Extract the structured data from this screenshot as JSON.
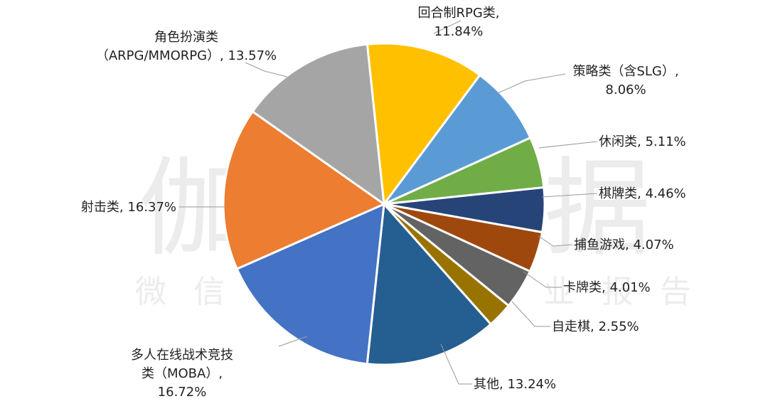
{
  "watermark": {
    "main": "伽马数据",
    "sub": "微信号：游戏产业报告"
  },
  "chart_data": {
    "type": "pie",
    "title": "",
    "start_angle_deg": -6,
    "direction": "clockwise",
    "slices": [
      {
        "name": "回合制RPG类",
        "value": 11.84,
        "color": "#FFC000",
        "label_lines": [
          "回合制RPG类,",
          "11.84%"
        ],
        "label_align": "middle"
      },
      {
        "name": "策略类（含SLG）",
        "value": 8.06,
        "color": "#5B9BD5",
        "label_lines": [
          "策略类（含SLG）,",
          "8.06%"
        ],
        "label_align": "middle"
      },
      {
        "name": "休闲类",
        "value": 5.11,
        "color": "#70AD47",
        "label_lines": [
          "休闲类, 5.11%"
        ],
        "label_align": "start"
      },
      {
        "name": "棋牌类",
        "value": 4.46,
        "color": "#264478",
        "label_lines": [
          "棋牌类, 4.46%"
        ],
        "label_align": "start"
      },
      {
        "name": "捕鱼游戏",
        "value": 4.07,
        "color": "#9E480E",
        "label_lines": [
          "捕鱼游戏, 4.07%"
        ],
        "label_align": "start"
      },
      {
        "name": "卡牌类",
        "value": 4.01,
        "color": "#636363",
        "label_lines": [
          "卡牌类, 4.01%"
        ],
        "label_align": "start"
      },
      {
        "name": "自走棋",
        "value": 2.55,
        "color": "#997300",
        "label_lines": [
          "自走棋, 2.55%"
        ],
        "label_align": "start"
      },
      {
        "name": "其他",
        "value": 13.24,
        "color": "#255E91",
        "label_lines": [
          "其他, 13.24%"
        ],
        "label_align": "start"
      },
      {
        "name": "多人在线战术竞技类（MOBA）",
        "value": 16.72,
        "color": "#4472C4",
        "label_lines": [
          "多人在线战术竞技",
          "类（MOBA）,",
          "16.72%"
        ],
        "label_align": "middle"
      },
      {
        "name": "射击类",
        "value": 16.37,
        "color": "#ED7D31",
        "label_lines": [
          "射击类, 16.37%"
        ],
        "label_align": "end"
      },
      {
        "name": "角色扮演类（ARPG/MMORPG）",
        "value": 13.57,
        "color": "#A5A5A5",
        "label_lines": [
          "角色扮演类",
          "（ARPG/MMORPG）, 13.57%"
        ],
        "label_align": "middle"
      }
    ]
  }
}
